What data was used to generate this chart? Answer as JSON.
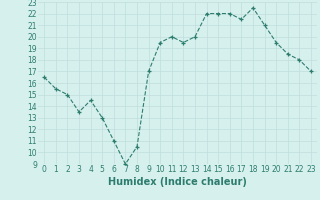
{
  "x": [
    0,
    1,
    2,
    3,
    4,
    5,
    6,
    7,
    8,
    9,
    10,
    11,
    12,
    13,
    14,
    15,
    16,
    17,
    18,
    19,
    20,
    21,
    22,
    23
  ],
  "y": [
    16.5,
    15.5,
    15.0,
    13.5,
    14.5,
    13.0,
    11.0,
    9.0,
    10.5,
    17.0,
    19.5,
    20.0,
    19.5,
    20.0,
    22.0,
    22.0,
    22.0,
    21.5,
    22.5,
    21.0,
    19.5,
    18.5,
    18.0,
    17.0
  ],
  "xlim": [
    -0.5,
    23.5
  ],
  "ylim": [
    9,
    23
  ],
  "yticks": [
    9,
    10,
    11,
    12,
    13,
    14,
    15,
    16,
    17,
    18,
    19,
    20,
    21,
    22,
    23
  ],
  "xticks": [
    0,
    1,
    2,
    3,
    4,
    5,
    6,
    7,
    8,
    9,
    10,
    11,
    12,
    13,
    14,
    15,
    16,
    17,
    18,
    19,
    20,
    21,
    22,
    23
  ],
  "xlabel": "Humidex (Indice chaleur)",
  "line_color": "#2d7d6e",
  "marker": "+",
  "bg_color": "#d6f0ee",
  "grid_color": "#c0dedd",
  "tick_color": "#2d7d6e",
  "label_fontsize": 5.5,
  "xlabel_fontsize": 7.0
}
